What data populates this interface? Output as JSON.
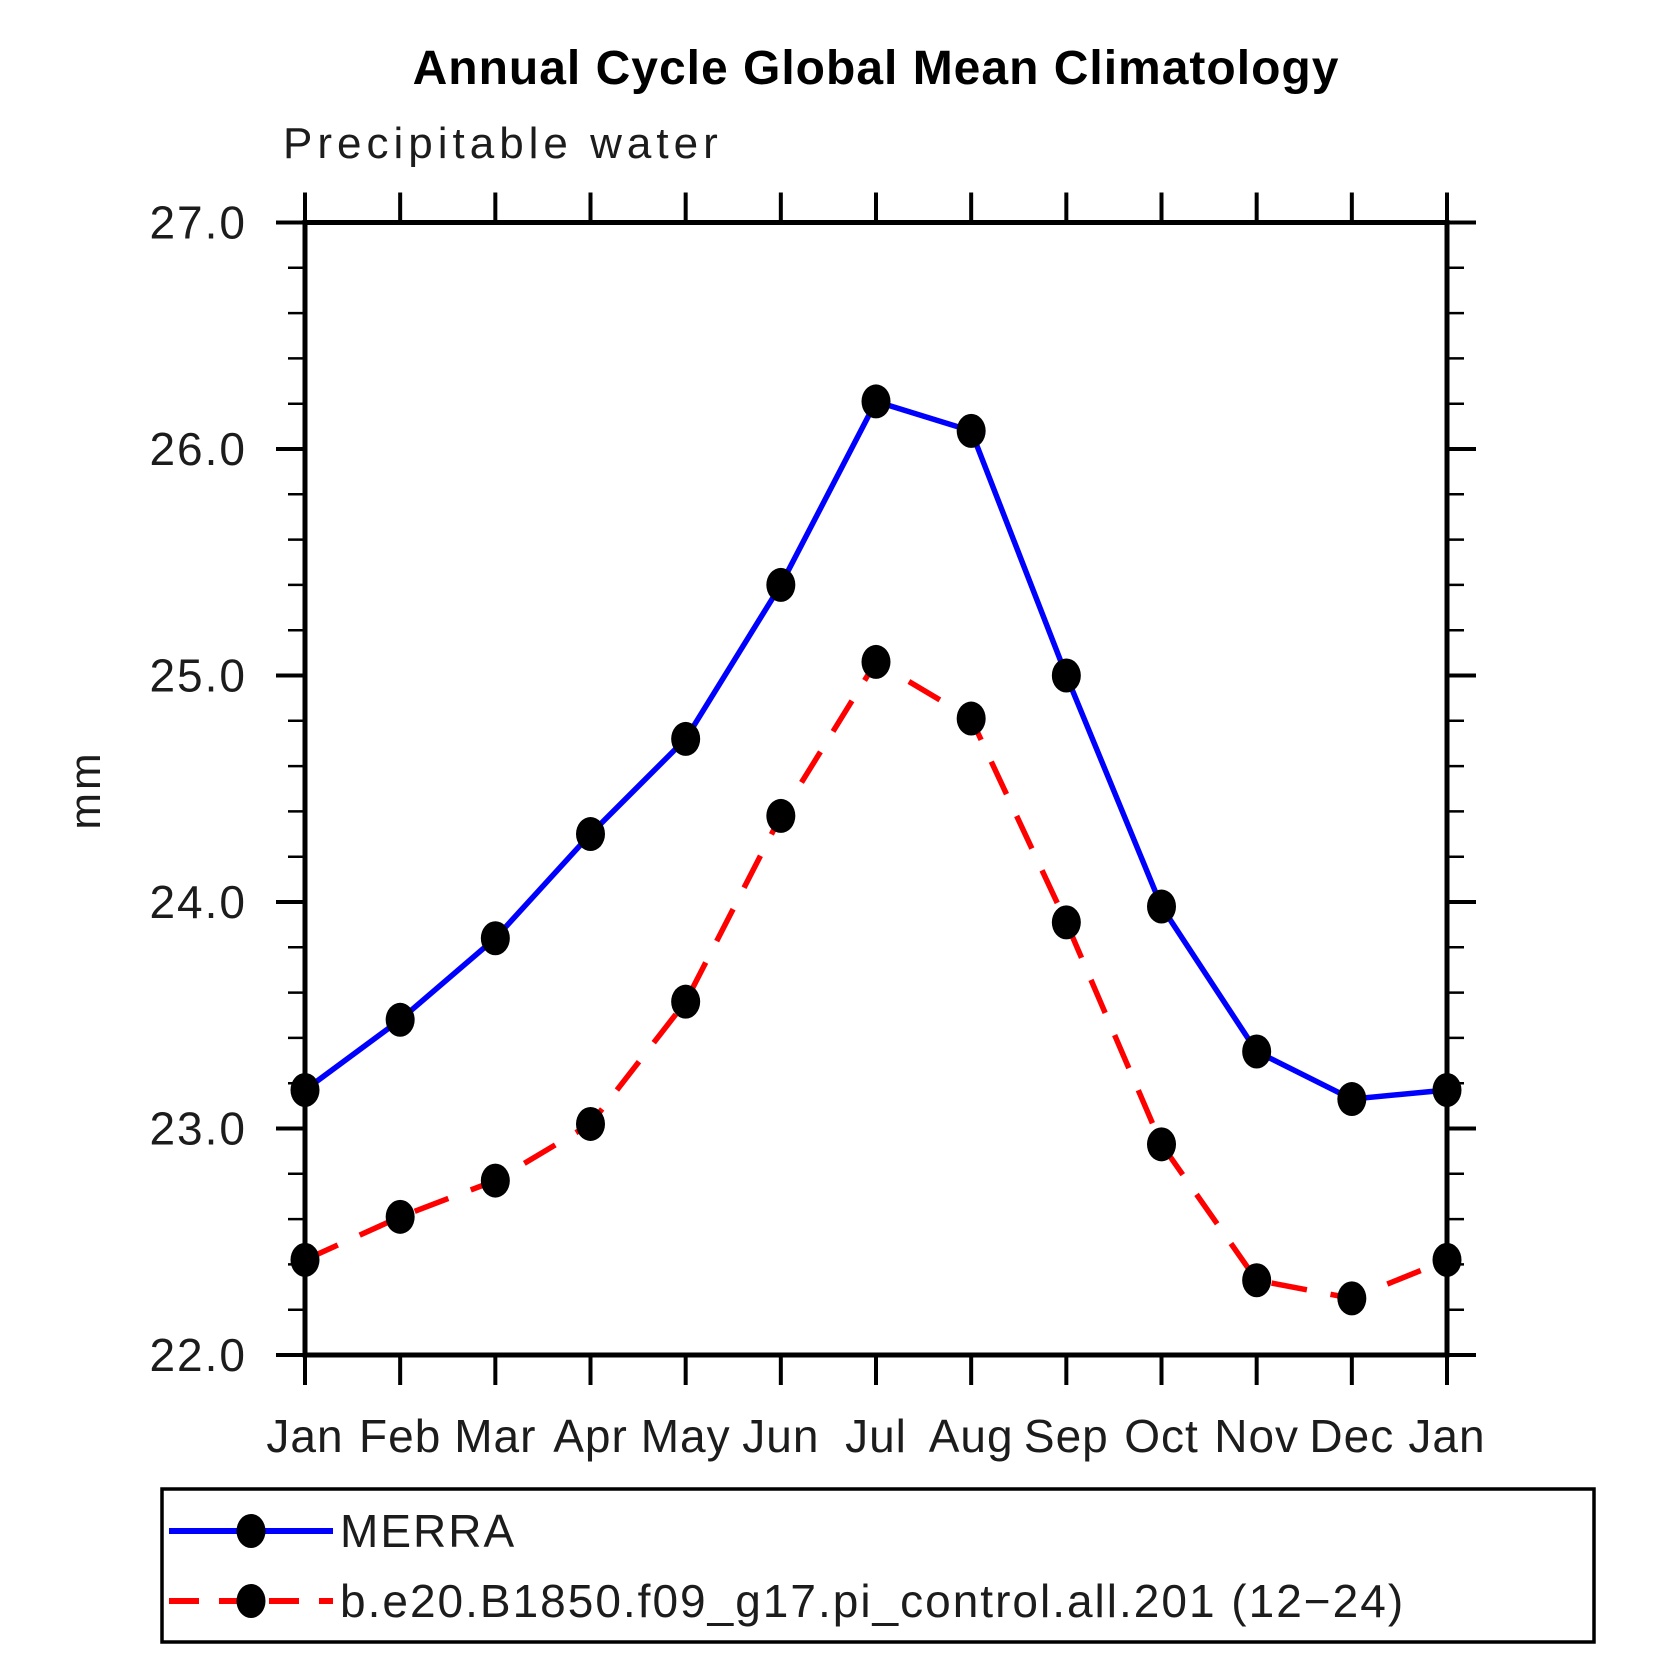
{
  "chart_data": {
    "type": "line",
    "title": "Annual Cycle Global Mean Climatology",
    "subtitle": "Precipitable water",
    "ylabel": "mm",
    "xlabel": "",
    "categories": [
      "Jan",
      "Feb",
      "Mar",
      "Apr",
      "May",
      "Jun",
      "Jul",
      "Aug",
      "Sep",
      "Oct",
      "Nov",
      "Dec",
      "Jan"
    ],
    "ylim": [
      22.0,
      27.0
    ],
    "ytick_labels": [
      "22.0",
      "23.0",
      "24.0",
      "25.0",
      "26.0",
      "27.0"
    ],
    "ytick_major_interval": 1.0,
    "ytick_minor_interval": 0.2,
    "grid": false,
    "legend_position": "bottom-box",
    "series": [
      {
        "name": "MERRA",
        "line_color": "#0000ff",
        "line_style": "solid",
        "marker": "filled-circle",
        "marker_color": "#000000",
        "values": [
          23.17,
          23.48,
          23.84,
          24.3,
          24.72,
          25.4,
          26.21,
          26.08,
          25.0,
          23.98,
          23.34,
          23.13,
          23.17
        ]
      },
      {
        "name": "b.e20.B1850.f09_g17.pi_control.all.201 (12−24)",
        "line_color": "#ff0000",
        "line_style": "dashed",
        "marker": "filled-circle",
        "marker_color": "#000000",
        "values": [
          22.42,
          22.61,
          22.77,
          23.02,
          23.56,
          24.38,
          25.06,
          24.81,
          23.91,
          22.93,
          22.33,
          22.25,
          22.42
        ]
      }
    ]
  },
  "colors": {
    "axis": "#000000",
    "background": "#ffffff",
    "series_1": "#0000ff",
    "series_2": "#ff0000",
    "marker": "#000000"
  }
}
